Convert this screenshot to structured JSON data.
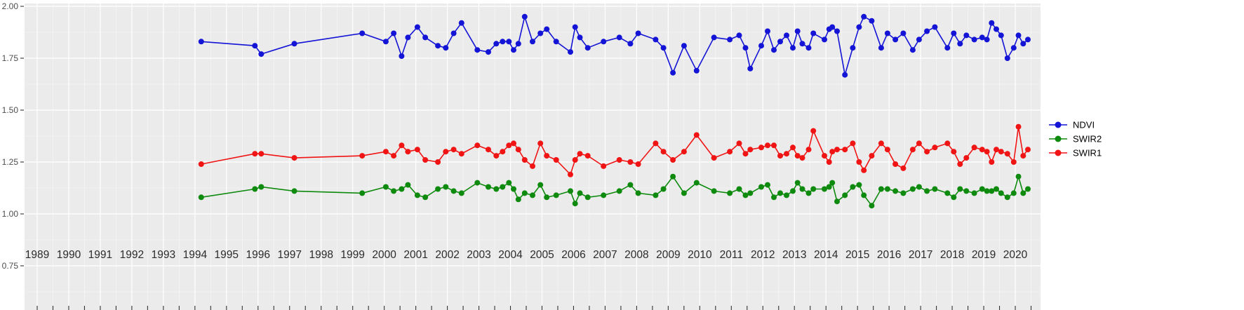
{
  "figure": {
    "background": "#ffffff",
    "panel_background": "#ebebeb",
    "grid_major_color": "#ffffff",
    "grid_minor_color": "#f5f5f5",
    "axis_tick_color": "#333333",
    "axis_text_color": "#4d4d4d",
    "year_label_color": "#2b2b2b",
    "legend_text_color": "#000000"
  },
  "chart_data": {
    "type": "line",
    "title": "",
    "xlabel": "",
    "ylabel": "",
    "grid": true,
    "legend_position": "right",
    "xlim": [
      1988.6,
      2020.8
    ],
    "ylim": [
      0.75,
      2.0
    ],
    "y_ticks": [
      2.0,
      1.75,
      1.5,
      1.25,
      1.0,
      0.75
    ],
    "y_tick_labels": [
      "2.00",
      "1.75",
      "1.50",
      "1.25",
      "1.00",
      "0.75"
    ],
    "x_tick_years": [
      1989,
      1990,
      1991,
      1992,
      1993,
      1994,
      1995,
      1996,
      1997,
      1998,
      1999,
      2000,
      2001,
      2002,
      2003,
      2004,
      2005,
      2006,
      2007,
      2008,
      2009,
      2010,
      2011,
      2012,
      2013,
      2014,
      2015,
      2016,
      2017,
      2018,
      2019,
      2020
    ],
    "x_tick_labels": [
      "1989",
      "1990",
      "1991",
      "1992",
      "1993",
      "1994",
      "1995",
      "1996",
      "1997",
      "1998",
      "1999",
      "2000",
      "2001",
      "2002",
      "2003",
      "2004",
      "2005",
      "2006",
      "2007",
      "2008",
      "2009",
      "2010",
      "2011",
      "2012",
      "2013",
      "2014",
      "2015",
      "2016",
      "2017",
      "2018",
      "2019",
      "2020"
    ],
    "x": [
      1994.2,
      1995.9,
      1996.1,
      1997.15,
      1999.3,
      2000.05,
      2000.3,
      2000.55,
      2000.75,
      2001.05,
      2001.3,
      2001.7,
      2001.95,
      2002.2,
      2002.45,
      2002.95,
      2003.3,
      2003.55,
      2003.75,
      2003.95,
      2004.1,
      2004.25,
      2004.45,
      2004.7,
      2004.95,
      2005.15,
      2005.45,
      2005.9,
      2006.05,
      2006.2,
      2006.45,
      2006.95,
      2007.45,
      2007.8,
      2008.05,
      2008.6,
      2008.85,
      2009.15,
      2009.5,
      2009.9,
      2010.45,
      2010.95,
      2011.25,
      2011.45,
      2011.6,
      2011.95,
      2012.15,
      2012.35,
      2012.55,
      2012.75,
      2012.95,
      2013.1,
      2013.25,
      2013.45,
      2013.6,
      2013.95,
      2014.1,
      2014.2,
      2014.35,
      2014.6,
      2014.85,
      2015.05,
      2015.2,
      2015.45,
      2015.75,
      2015.95,
      2016.2,
      2016.45,
      2016.75,
      2016.95,
      2017.2,
      2017.45,
      2017.85,
      2018.05,
      2018.25,
      2018.45,
      2018.7,
      2018.95,
      2019.1,
      2019.25,
      2019.4,
      2019.55,
      2019.75,
      2019.95,
      2020.1,
      2020.25,
      2020.4
    ],
    "series": [
      {
        "name": "NDVI",
        "color": "#1414d6",
        "values": [
          1.83,
          1.81,
          1.77,
          1.82,
          1.87,
          1.83,
          1.87,
          1.76,
          1.85,
          1.9,
          1.85,
          1.81,
          1.8,
          1.87,
          1.92,
          1.79,
          1.78,
          1.82,
          1.83,
          1.83,
          1.79,
          1.82,
          1.95,
          1.83,
          1.87,
          1.89,
          1.83,
          1.78,
          1.9,
          1.85,
          1.8,
          1.83,
          1.85,
          1.82,
          1.87,
          1.84,
          1.8,
          1.68,
          1.81,
          1.69,
          1.85,
          1.84,
          1.86,
          1.8,
          1.7,
          1.81,
          1.88,
          1.79,
          1.83,
          1.86,
          1.8,
          1.88,
          1.82,
          1.8,
          1.87,
          1.84,
          1.89,
          1.9,
          1.88,
          1.67,
          1.8,
          1.9,
          1.95,
          1.93,
          1.8,
          1.87,
          1.84,
          1.87,
          1.79,
          1.84,
          1.88,
          1.9,
          1.8,
          1.87,
          1.82,
          1.86,
          1.84,
          1.85,
          1.84,
          1.92,
          1.89,
          1.86,
          1.75,
          1.8,
          1.86,
          1.82,
          1.84
        ]
      },
      {
        "name": "SWIR2",
        "color": "#0e8a0e",
        "values": [
          1.08,
          1.12,
          1.13,
          1.11,
          1.1,
          1.13,
          1.11,
          1.12,
          1.14,
          1.09,
          1.08,
          1.12,
          1.13,
          1.11,
          1.1,
          1.15,
          1.13,
          1.12,
          1.13,
          1.15,
          1.12,
          1.07,
          1.1,
          1.09,
          1.14,
          1.08,
          1.09,
          1.11,
          1.05,
          1.1,
          1.08,
          1.09,
          1.11,
          1.14,
          1.1,
          1.09,
          1.12,
          1.18,
          1.1,
          1.15,
          1.11,
          1.1,
          1.12,
          1.09,
          1.1,
          1.13,
          1.14,
          1.08,
          1.1,
          1.09,
          1.11,
          1.15,
          1.12,
          1.1,
          1.12,
          1.12,
          1.13,
          1.15,
          1.06,
          1.09,
          1.13,
          1.14,
          1.09,
          1.04,
          1.12,
          1.12,
          1.11,
          1.1,
          1.12,
          1.13,
          1.11,
          1.12,
          1.1,
          1.08,
          1.12,
          1.11,
          1.1,
          1.12,
          1.11,
          1.11,
          1.12,
          1.1,
          1.08,
          1.1,
          1.18,
          1.1,
          1.12
        ]
      },
      {
        "name": "SWIR1",
        "color": "#f01414",
        "values": [
          1.24,
          1.29,
          1.29,
          1.27,
          1.28,
          1.3,
          1.28,
          1.33,
          1.3,
          1.31,
          1.26,
          1.25,
          1.3,
          1.31,
          1.29,
          1.33,
          1.31,
          1.28,
          1.3,
          1.33,
          1.34,
          1.31,
          1.26,
          1.23,
          1.34,
          1.28,
          1.26,
          1.19,
          1.26,
          1.29,
          1.28,
          1.23,
          1.26,
          1.25,
          1.24,
          1.34,
          1.3,
          1.26,
          1.3,
          1.38,
          1.27,
          1.3,
          1.34,
          1.29,
          1.31,
          1.32,
          1.33,
          1.33,
          1.28,
          1.29,
          1.32,
          1.28,
          1.27,
          1.31,
          1.4,
          1.28,
          1.25,
          1.3,
          1.31,
          1.31,
          1.34,
          1.25,
          1.21,
          1.28,
          1.34,
          1.31,
          1.24,
          1.22,
          1.31,
          1.34,
          1.3,
          1.32,
          1.34,
          1.3,
          1.24,
          1.27,
          1.32,
          1.31,
          1.3,
          1.25,
          1.31,
          1.3,
          1.29,
          1.25,
          1.42,
          1.28,
          1.31
        ]
      }
    ],
    "legend_order": [
      "NDVI",
      "SWIR2",
      "SWIR1"
    ]
  }
}
